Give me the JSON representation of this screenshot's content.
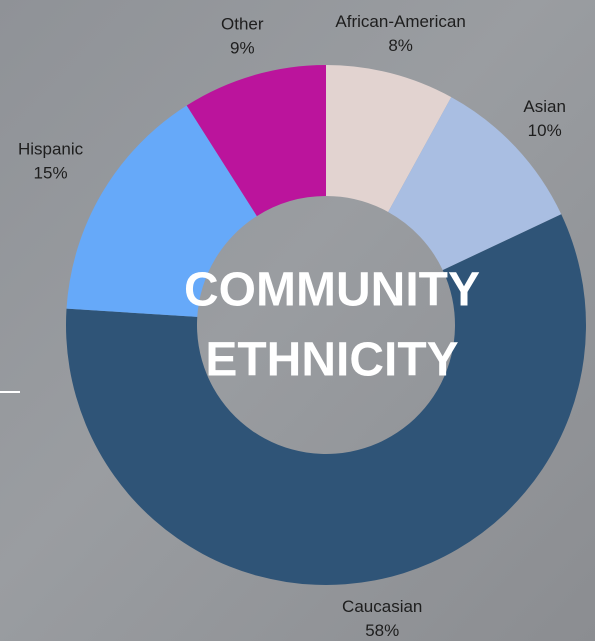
{
  "chart_data": {
    "type": "donut",
    "title": [
      "COMMUNITY",
      "ETHNICITY"
    ],
    "categories": [
      "African-American",
      "Asian",
      "Caucasian",
      "Hispanic",
      "Other"
    ],
    "values": [
      8,
      10,
      58,
      15,
      9
    ],
    "value_labels": [
      "8%",
      "10%",
      "58%",
      "15%",
      "9%"
    ],
    "colors": [
      "#e2d3d0",
      "#a9bee2",
      "#2f5477",
      "#66a9f9",
      "#bb149c"
    ]
  }
}
